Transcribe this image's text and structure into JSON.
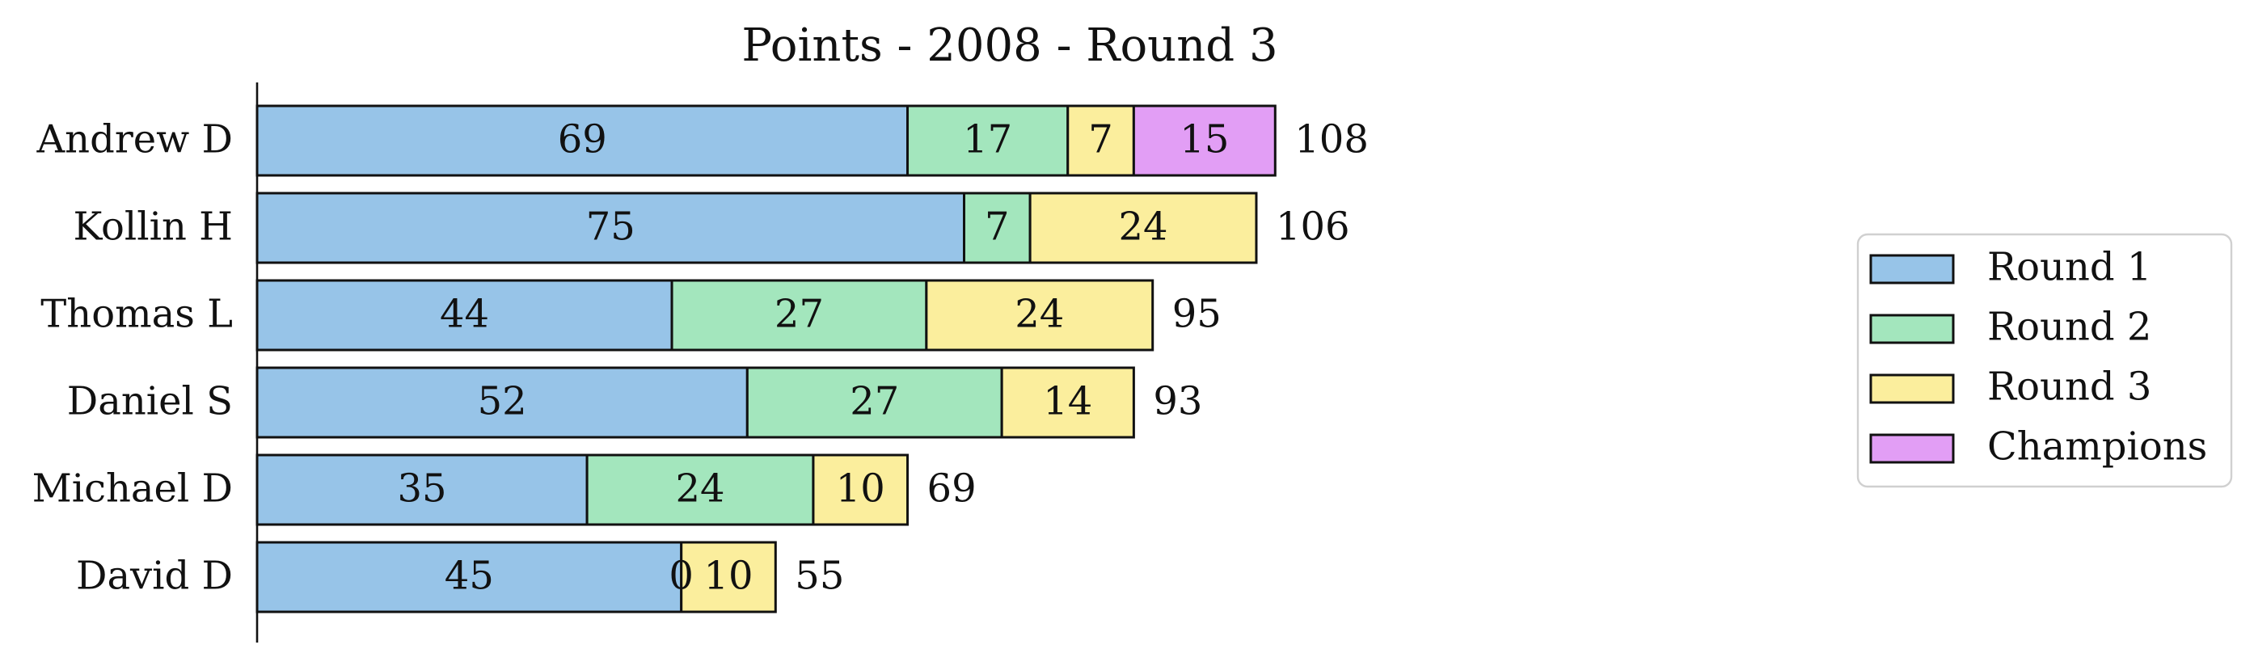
{
  "chart_data": {
    "type": "bar",
    "orientation": "horizontal",
    "stacked": true,
    "title": "Points - 2008 - Round 3",
    "xlabel": "",
    "ylabel": "",
    "xlim": [
      0,
      108
    ],
    "grid": false,
    "legend_position": "right",
    "categories": [
      "Andrew D",
      "Kollin H",
      "Thomas L",
      "Daniel S",
      "Michael D",
      "David D"
    ],
    "series": [
      {
        "name": "Round 1",
        "color": "#97c4e8",
        "values": [
          69,
          75,
          44,
          52,
          35,
          45
        ]
      },
      {
        "name": "Round 2",
        "color": "#a3e6bd",
        "values": [
          17,
          7,
          27,
          27,
          24,
          0
        ]
      },
      {
        "name": "Round 3",
        "color": "#fbee9d",
        "values": [
          7,
          24,
          24,
          14,
          10,
          10
        ]
      },
      {
        "name": "Champions",
        "color": "#e29ef5",
        "values": [
          15,
          0,
          0,
          0,
          0,
          0
        ]
      }
    ],
    "totals": [
      108,
      106,
      95,
      93,
      69,
      55
    ],
    "zero_labels_shown": [
      {
        "category": "David D",
        "series": "Round 2",
        "text": "0"
      }
    ]
  }
}
